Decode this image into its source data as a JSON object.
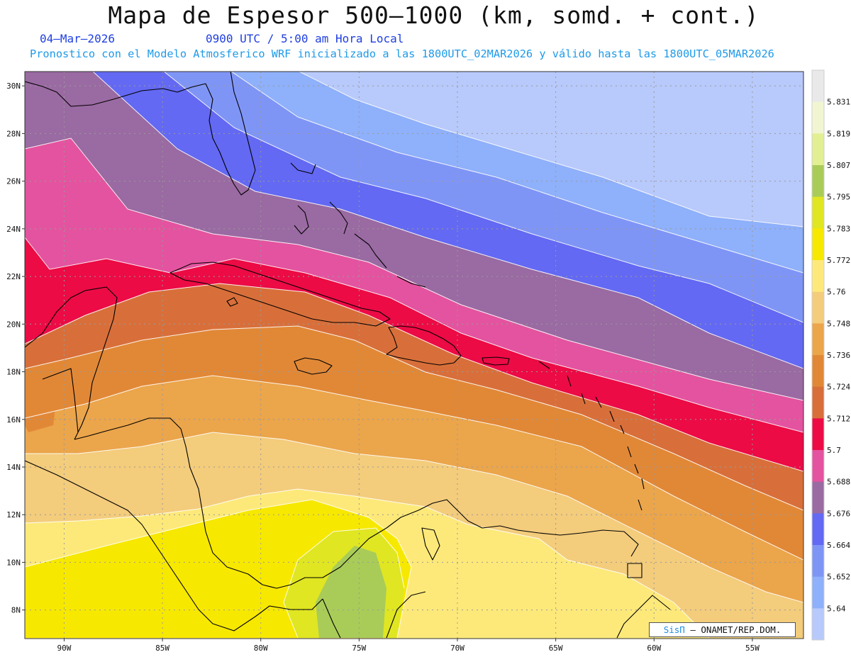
{
  "header": {
    "title": "Mapa de Espesor 500–1000 (km, somd. + cont.)",
    "date": "04–Mar–2026",
    "time": "0900 UTC / 5:00 am Hora Local",
    "info": "Pronostico con el Modelo Atmosferico WRF inicializado a las 1800UTC_02MAR2026 y válido hasta las  1800UTC_05MAR2026"
  },
  "map": {
    "variable": "500–1000 hPa thickness",
    "unit": "km",
    "lon_range": [
      -92,
      -52.4
    ],
    "lat_range": [
      6.8,
      30.6
    ],
    "lon_ticks": [
      "90W",
      "85W",
      "80W",
      "75W",
      "70W",
      "65W",
      "60W",
      "55W"
    ],
    "lat_ticks": [
      "30N",
      "28N",
      "26N",
      "24N",
      "22N",
      "20N",
      "18N",
      "16N",
      "14N",
      "12N",
      "10N",
      "8N"
    ],
    "gridlines": true,
    "contour_lines": "white",
    "regions": [
      "Florida",
      "Bahamas",
      "Cuba",
      "Jamaica",
      "Hispaniola",
      "Puerto Rico",
      "Lesser Antilles",
      "Yucatán",
      "Central America",
      "Panama",
      "Colombia",
      "Venezuela"
    ]
  },
  "colorbar": {
    "labels": [
      "5.831",
      "5.819",
      "5.807",
      "5.795",
      "5.783",
      "5.772",
      "5.76",
      "5.748",
      "5.736",
      "5.724",
      "5.712",
      "5.7",
      "5.688",
      "5.676",
      "5.664",
      "5.652",
      "5.64"
    ],
    "colors": [
      "#e9e9e9",
      "#f2f5d2",
      "#e2ef93",
      "#a9cc58",
      "#e0e621",
      "#f7e800",
      "#fde97a",
      "#f3cc7c",
      "#eba54b",
      "#e18837",
      "#d86f3a",
      "#ec0b45",
      "#e4539f",
      "#9a6aa2",
      "#6369f2",
      "#7f95f6",
      "#8fb0fa",
      "#b8c9fb"
    ]
  },
  "credit": {
    "brand": "SisΠ",
    "text": " – ONAMET/REP.DOM."
  }
}
